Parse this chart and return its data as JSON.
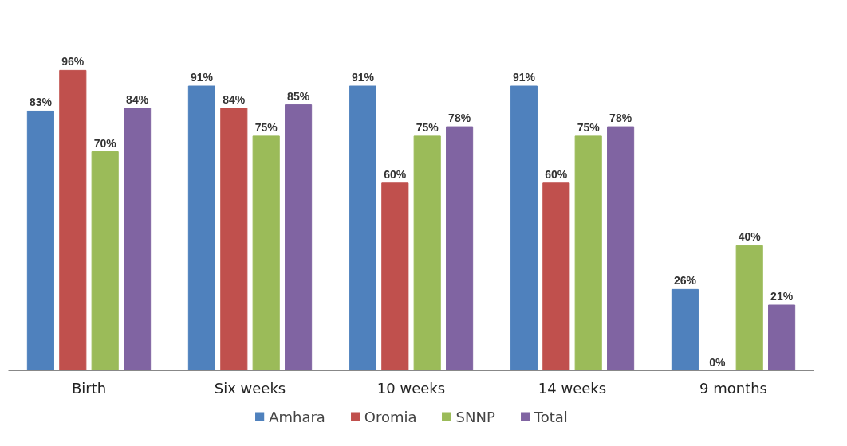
{
  "chart_data": {
    "type": "bar",
    "categories": [
      "Birth",
      "Six weeks",
      "10 weeks",
      "14 weeks",
      "9 months"
    ],
    "series": [
      {
        "name": "Amhara",
        "color": "#4f81bd",
        "values": [
          83,
          91,
          91,
          91,
          26
        ],
        "value_labels": [
          "83%",
          "91%",
          "91%",
          "91%",
          "26%"
        ]
      },
      {
        "name": "Oromia",
        "color": "#c0504d",
        "values": [
          96,
          84,
          60,
          60,
          0
        ],
        "value_labels": [
          "96%",
          "84%",
          "60%",
          "60%",
          "0%"
        ]
      },
      {
        "name": "SNNP",
        "color": "#9bbb59",
        "values": [
          70,
          75,
          75,
          75,
          40
        ],
        "value_labels": [
          "70%",
          "75%",
          "75%",
          "75%",
          "40%"
        ]
      },
      {
        "name": "Total",
        "color": "#8064a2",
        "values": [
          84,
          85,
          78,
          78,
          21
        ],
        "value_labels": [
          "84%",
          "85%",
          "78%",
          "78%",
          "21%"
        ]
      }
    ],
    "legend": "bottom",
    "grid": false,
    "relative": false
  }
}
